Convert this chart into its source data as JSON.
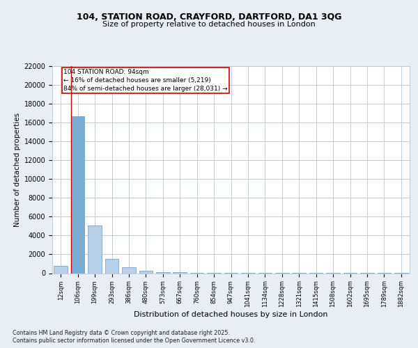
{
  "title_line1": "104, STATION ROAD, CRAYFORD, DARTFORD, DA1 3QG",
  "title_line2": "Size of property relative to detached houses in London",
  "xlabel": "Distribution of detached houses by size in London",
  "ylabel": "Number of detached properties",
  "categories": [
    "12sqm",
    "106sqm",
    "199sqm",
    "293sqm",
    "386sqm",
    "480sqm",
    "573sqm",
    "667sqm",
    "760sqm",
    "854sqm",
    "947sqm",
    "1041sqm",
    "1134sqm",
    "1228sqm",
    "1321sqm",
    "1415sqm",
    "1508sqm",
    "1602sqm",
    "1695sqm",
    "1789sqm",
    "1882sqm"
  ],
  "values": [
    800,
    16700,
    5100,
    1500,
    600,
    250,
    130,
    80,
    50,
    35,
    25,
    18,
    13,
    10,
    8,
    6,
    5,
    4,
    3,
    3,
    2
  ],
  "highlight_index": 1,
  "bar_color_normal": "#b8cfe8",
  "bar_color_highlight": "#7aadd4",
  "bar_edge_color": "#6699bb",
  "annotation_box_color": "#cc0000",
  "annotation_text_line1": "104 STATION ROAD: 94sqm",
  "annotation_text_line2": "← 16% of detached houses are smaller (5,219)",
  "annotation_text_line3": "84% of semi-detached houses are larger (28,031) →",
  "footer_line1": "Contains HM Land Registry data © Crown copyright and database right 2025.",
  "footer_line2": "Contains public sector information licensed under the Open Government Licence v3.0.",
  "ylim": [
    0,
    22000
  ],
  "yticks": [
    0,
    2000,
    4000,
    6000,
    8000,
    10000,
    12000,
    14000,
    16000,
    18000,
    20000,
    22000
  ],
  "bg_color": "#e8eef4",
  "plot_bg_color": "#ffffff",
  "grid_color": "#c0ccd8"
}
